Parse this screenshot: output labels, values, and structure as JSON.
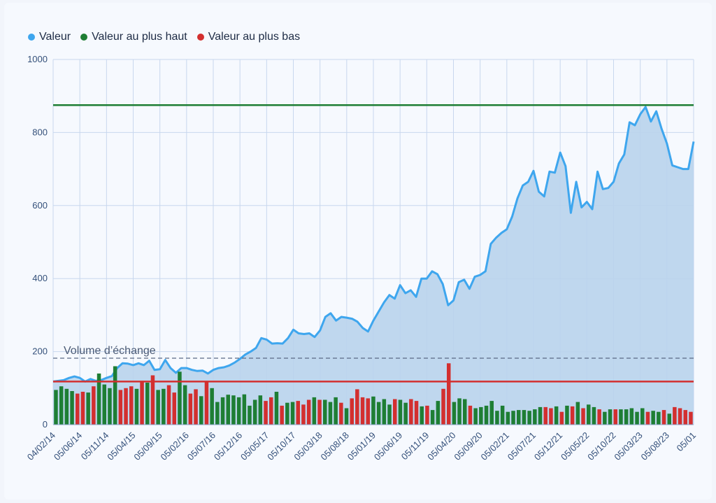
{
  "legend": [
    {
      "label": "Valeur",
      "color": "#3ea6ee"
    },
    {
      "label": "Valeur au plus haut",
      "color": "#1e7e34"
    },
    {
      "label": "Valeur au plus bas",
      "color": "#d32f2f"
    }
  ],
  "chart_data": {
    "type": "area",
    "ylim": [
      0,
      1000
    ],
    "yticks": [
      0,
      200,
      400,
      600,
      800,
      1000
    ],
    "xticks": [
      "04/02/14",
      "05/06/14",
      "05/11/14",
      "05/04/15",
      "05/09/15",
      "05/02/16",
      "05/07/16",
      "05/12/16",
      "05/05/17",
      "05/10/17",
      "05/03/18",
      "05/08/18",
      "05/01/19",
      "05/06/19",
      "05/11/19",
      "05/04/20",
      "05/09/20",
      "05/02/21",
      "05/07/21",
      "05/12/21",
      "05/05/22",
      "05/10/22",
      "05/03/23",
      "05/08/23",
      "05/01"
    ],
    "series": [
      {
        "name": "Valeur",
        "color": "#3ea6ee",
        "values": [
          118,
          120,
          122,
          128,
          132,
          128,
          118,
          125,
          120,
          122,
          128,
          133,
          155,
          168,
          167,
          163,
          168,
          163,
          175,
          150,
          152,
          177,
          155,
          142,
          155,
          155,
          150,
          147,
          148,
          140,
          150,
          155,
          157,
          162,
          170,
          180,
          192,
          200,
          210,
          237,
          233,
          222,
          223,
          222,
          237,
          260,
          250,
          248,
          250,
          240,
          258,
          295,
          305,
          285,
          295,
          293,
          290,
          282,
          265,
          255,
          285,
          310,
          335,
          355,
          345,
          382,
          360,
          368,
          350,
          400,
          400,
          420,
          412,
          385,
          327,
          340,
          390,
          397,
          372,
          405,
          410,
          420,
          495,
          512,
          525,
          535,
          570,
          620,
          655,
          665,
          695,
          638,
          625,
          693,
          690,
          745,
          708,
          580,
          665,
          595,
          610,
          590,
          693,
          645,
          648,
          665,
          715,
          740,
          828,
          820,
          850,
          870,
          830,
          858,
          810,
          770,
          710,
          705,
          700,
          700,
          775
        ]
      },
      {
        "name": "Volume d’échange",
        "color": "#4a5a75",
        "values": [
          95,
          105,
          98,
          92,
          85,
          90,
          88,
          105,
          140,
          110,
          100,
          160,
          95,
          100,
          105,
          98,
          120,
          115,
          135,
          95,
          98,
          108,
          88,
          145,
          108,
          85,
          97,
          78,
          118,
          100,
          62,
          75,
          82,
          80,
          75,
          83,
          52,
          68,
          80,
          65,
          75,
          90,
          52,
          60,
          62,
          65,
          55,
          68,
          75,
          68,
          68,
          62,
          75,
          60,
          45,
          72,
          97,
          75,
          72,
          77,
          62,
          70,
          55,
          70,
          68,
          60,
          70,
          65,
          50,
          52,
          40,
          65,
          98,
          168,
          62,
          72,
          70,
          52,
          45,
          48,
          52,
          65,
          38,
          52,
          35,
          38,
          40,
          40,
          38,
          42,
          48,
          48,
          45,
          50,
          35,
          52,
          50,
          62,
          45,
          55,
          48,
          42,
          35,
          42,
          42,
          42,
          42,
          45,
          35,
          45,
          35,
          38,
          35,
          40,
          30,
          48,
          45,
          40,
          35
        ],
        "colors": [
          "g",
          "g",
          "g",
          "g",
          "r",
          "r",
          "g",
          "r",
          "g",
          "g",
          "g",
          "g",
          "r",
          "r",
          "r",
          "g",
          "r",
          "g",
          "r",
          "g",
          "g",
          "r",
          "r",
          "g",
          "g",
          "r",
          "r",
          "g",
          "r",
          "g",
          "g",
          "g",
          "g",
          "g",
          "g",
          "g",
          "g",
          "g",
          "g",
          "r",
          "r",
          "g",
          "r",
          "g",
          "g",
          "r",
          "r",
          "r",
          "g",
          "r",
          "g",
          "g",
          "g",
          "r",
          "g",
          "r",
          "r",
          "r",
          "r",
          "g",
          "g",
          "g",
          "g",
          "r",
          "g",
          "g",
          "r",
          "r",
          "g",
          "r",
          "g",
          "g",
          "r",
          "r",
          "g",
          "g",
          "g",
          "r",
          "g",
          "g",
          "g",
          "g",
          "g",
          "g",
          "g",
          "g",
          "g",
          "g",
          "g",
          "g",
          "g",
          "r",
          "r",
          "g",
          "r",
          "g",
          "r",
          "g",
          "r",
          "g",
          "g",
          "r",
          "g",
          "g",
          "r",
          "g",
          "g",
          "g",
          "g",
          "g",
          "r",
          "g",
          "g",
          "r",
          "g",
          "r",
          "r",
          "r",
          "r"
        ]
      }
    ],
    "reference_lines": [
      {
        "name": "Valeur au plus haut",
        "value": 875,
        "color": "#1e7e34"
      },
      {
        "name": "Valeur au plus bas",
        "value": 118,
        "color": "#d32f2f"
      }
    ],
    "volume_line": {
      "label": "Volume d’échange",
      "value": 182
    },
    "grid": true
  }
}
